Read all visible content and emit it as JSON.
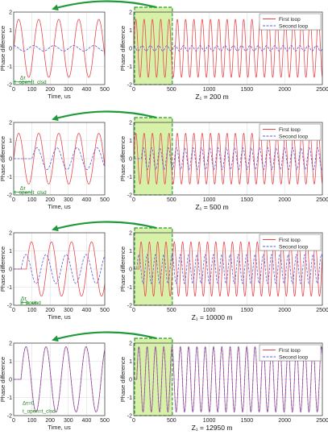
{
  "chart_data": [
    {
      "type": "line",
      "xlabel": "Time, us",
      "ylabel": "Phase difference",
      "xlim": [
        0,
        500
      ],
      "ylim": [
        -2,
        2
      ],
      "xticks": [
        "0",
        "100",
        "200",
        "300",
        "400",
        "500"
      ],
      "yticks": [
        "-2",
        "-1",
        "0",
        "1",
        "2"
      ],
      "annotation": [
        "Δτ",
        "t_open",
        "t_clsd"
      ],
      "series": [
        {
          "amp": 1.6,
          "period": 110,
          "phase_deg": 0,
          "start": 0,
          "color": "#e8474d"
        },
        {
          "amp": 0.15,
          "period": 110,
          "phase_deg": 90,
          "start": 0,
          "color": "#5b5bd6"
        }
      ]
    },
    {
      "type": "line",
      "xlabel": "",
      "ylabel": "Phase difference",
      "caption": "Z₁ = 200 m",
      "xlim": [
        0,
        2500
      ],
      "ylim": [
        -2,
        2
      ],
      "xticks": [
        "0",
        "500",
        "1000",
        "1500",
        "2000",
        "2500"
      ],
      "yticks": [
        "-2",
        "-1",
        "0",
        "1",
        "2"
      ],
      "highlight": [
        0,
        500
      ],
      "series": [
        {
          "name": "First loop",
          "amp": 1.6,
          "period": 110,
          "phase_deg": 0,
          "start": 0,
          "color": "#e8474d"
        },
        {
          "name": "Second loop",
          "amp": 0.15,
          "period": 110,
          "phase_deg": 90,
          "start": 0,
          "color": "#5b5bd6"
        }
      ]
    },
    {
      "type": "line",
      "xlabel": "Time, us",
      "ylabel": "Phase difference",
      "xlim": [
        0,
        500
      ],
      "ylim": [
        -2,
        2
      ],
      "xticks": [
        "0",
        "100",
        "200",
        "300",
        "400",
        "500"
      ],
      "yticks": [
        "-2",
        "-1",
        "0",
        "1",
        "2"
      ],
      "annotation": [
        "Δτ",
        "t_open",
        "t_clsd"
      ],
      "series": [
        {
          "amp": 1.4,
          "period": 110,
          "phase_deg": 0,
          "start": 0,
          "color": "#e8474d"
        },
        {
          "amp": 0.6,
          "period": 110,
          "phase_deg": 0,
          "start": 100,
          "color": "#5b5bd6"
        }
      ]
    },
    {
      "type": "line",
      "xlabel": "",
      "ylabel": "Phase difference",
      "caption": "Z₁ = 500 m",
      "xlim": [
        0,
        2500
      ],
      "ylim": [
        -2,
        2
      ],
      "xticks": [
        "0",
        "500",
        "1000",
        "1500",
        "2000",
        "2500"
      ],
      "yticks": [
        "-2",
        "-1",
        "0",
        "1",
        "2"
      ],
      "highlight": [
        0,
        500
      ],
      "series": [
        {
          "name": "First loop",
          "amp": 1.4,
          "period": 110,
          "phase_deg": 0,
          "start": 0,
          "color": "#e8474d"
        },
        {
          "name": "Second loop",
          "amp": 0.6,
          "period": 110,
          "phase_deg": 0,
          "start": 100,
          "color": "#5b5bd6"
        }
      ]
    },
    {
      "type": "line",
      "xlabel": "Time, us",
      "ylabel": "Phase difference",
      "xlim": [
        0,
        500
      ],
      "ylim": [
        -2,
        2
      ],
      "xticks": [
        "0",
        "100",
        "200",
        "300",
        "400",
        "500"
      ],
      "yticks": [
        "-2",
        "-1",
        "0",
        "1",
        "2"
      ],
      "annotation": [
        "Δτ",
        "t_open",
        "t_clsd"
      ],
      "series": [
        {
          "amp": 1.5,
          "period": 110,
          "phase_deg": 0,
          "start": 70,
          "color": "#e8474d"
        },
        {
          "amp": 0.8,
          "period": 110,
          "phase_deg": 0,
          "start": 40,
          "color": "#5b5bd6"
        }
      ]
    },
    {
      "type": "line",
      "xlabel": "",
      "ylabel": "Phase difference",
      "caption": "Z₁ = 10000 m",
      "xlim": [
        0,
        2500
      ],
      "ylim": [
        -2,
        2
      ],
      "xticks": [
        "0",
        "500",
        "1000",
        "1500",
        "2000",
        "2500"
      ],
      "yticks": [
        "-2",
        "-1",
        "0",
        "1",
        "2"
      ],
      "highlight": [
        0,
        500
      ],
      "series": [
        {
          "name": "First loop",
          "amp": 1.5,
          "period": 110,
          "phase_deg": 0,
          "start": 70,
          "color": "#e8474d"
        },
        {
          "name": "Second loop",
          "amp": 0.8,
          "period": 110,
          "phase_deg": 0,
          "start": 40,
          "color": "#5b5bd6"
        }
      ]
    },
    {
      "type": "line",
      "xlabel": "Time, us",
      "ylabel": "Phase difference",
      "xlim": [
        0,
        500
      ],
      "ylim": [
        -2,
        2
      ],
      "xticks": [
        "0",
        "100",
        "200",
        "300",
        "400",
        "500"
      ],
      "yticks": [
        "-2",
        "-1",
        "0",
        "1",
        "2"
      ],
      "annotation": [
        "Δτ=0",
        "t_open=t_clsd"
      ],
      "series": [
        {
          "amp": 1.8,
          "period": 110,
          "phase_deg": 0,
          "start": 40,
          "color": "#e8474d"
        },
        {
          "amp": 1.8,
          "period": 110,
          "phase_deg": 0,
          "start": 40,
          "color": "#5b5bd6"
        }
      ]
    },
    {
      "type": "line",
      "xlabel": "",
      "ylabel": "Phase difference",
      "caption": "Z₁ = 12950 m",
      "xlim": [
        0,
        2500
      ],
      "ylim": [
        -2,
        2
      ],
      "xticks": [
        "0",
        "500",
        "1000",
        "1500",
        "2000",
        "2500"
      ],
      "yticks": [
        "-2",
        "-1",
        "0",
        "1",
        "2"
      ],
      "highlight": [
        0,
        500
      ],
      "series": [
        {
          "name": "First loop",
          "amp": 1.8,
          "period": 110,
          "phase_deg": 0,
          "start": 40,
          "color": "#e8474d"
        },
        {
          "name": "Second loop",
          "amp": 1.8,
          "period": 110,
          "phase_deg": 0,
          "start": 40,
          "color": "#5b5bd6"
        }
      ]
    }
  ],
  "colors": {
    "highlight_fill": "#d7f2a8",
    "highlight_edge": "#2a9a2a",
    "arrow": "#1e9a3a"
  }
}
